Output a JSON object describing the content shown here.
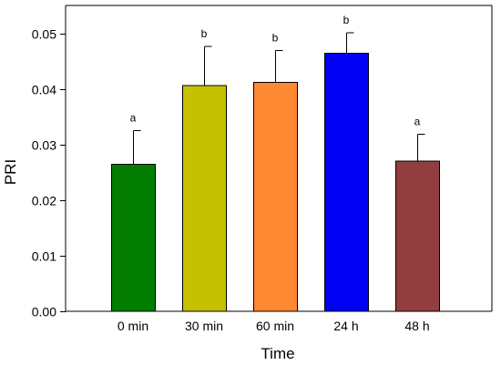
{
  "chart_data": {
    "type": "bar",
    "title": "",
    "xlabel": "Time",
    "ylabel": "PRI",
    "ylim": [
      0,
      0.055
    ],
    "yticks": [
      "0.00",
      "0.01",
      "0.02",
      "0.03",
      "0.04",
      "0.05"
    ],
    "grid": false,
    "categories": [
      "0 min",
      "30 min",
      "60 min",
      "24 h",
      "48 h"
    ],
    "values": [
      0.0264,
      0.0406,
      0.0412,
      0.0464,
      0.027
    ],
    "errors": [
      0.0061,
      0.007,
      0.0057,
      0.0037,
      0.0048
    ],
    "significance": [
      "a",
      "b",
      "b",
      "b",
      "a"
    ],
    "colors": [
      "#037d00",
      "#c5c100",
      "#ff8833",
      "#0000f5",
      "#923d3f"
    ]
  }
}
